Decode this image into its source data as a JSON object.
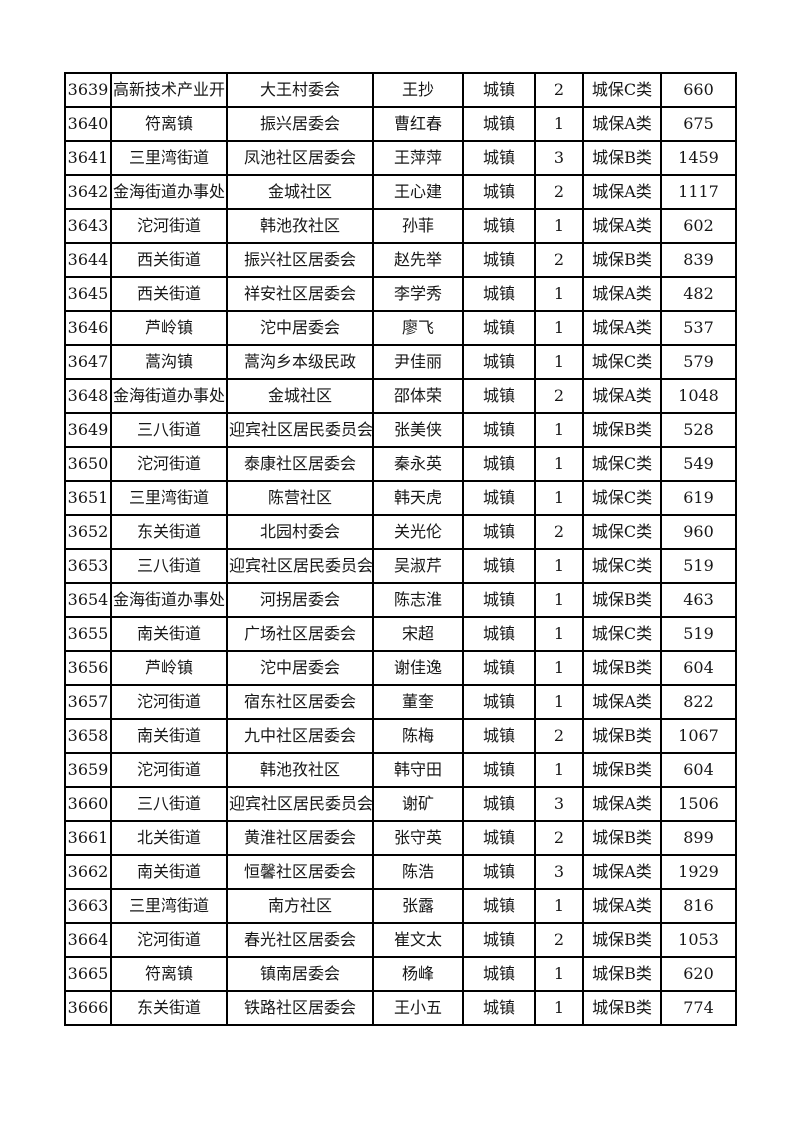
{
  "page": {
    "background_color": "#ffffff",
    "border_color": "#000000",
    "text_color": "#161616"
  },
  "table": {
    "column_keys": [
      "serial_number",
      "township",
      "committee",
      "person_name",
      "residence_type",
      "household_count",
      "insurance_category",
      "amount"
    ],
    "rows": [
      [
        "3639",
        "高新技术产业开",
        "大王村委会",
        "王抄",
        "城镇",
        "2",
        "城保C类",
        "660"
      ],
      [
        "3640",
        "符离镇",
        "振兴居委会",
        "曹红春",
        "城镇",
        "1",
        "城保A类",
        "675"
      ],
      [
        "3641",
        "三里湾街道",
        "凤池社区居委会",
        "王萍萍",
        "城镇",
        "3",
        "城保B类",
        "1459"
      ],
      [
        "3642",
        "金海街道办事处",
        "金城社区",
        "王心建",
        "城镇",
        "2",
        "城保A类",
        "1117"
      ],
      [
        "3643",
        "沱河街道",
        "韩池孜社区",
        "孙菲",
        "城镇",
        "1",
        "城保A类",
        "602"
      ],
      [
        "3644",
        "西关街道",
        "振兴社区居委会",
        "赵先举",
        "城镇",
        "2",
        "城保B类",
        "839"
      ],
      [
        "3645",
        "西关街道",
        "祥安社区居委会",
        "李学秀",
        "城镇",
        "1",
        "城保A类",
        "482"
      ],
      [
        "3646",
        "芦岭镇",
        "沱中居委会",
        "廖飞",
        "城镇",
        "1",
        "城保A类",
        "537"
      ],
      [
        "3647",
        "蒿沟镇",
        "蒿沟乡本级民政",
        "尹佳丽",
        "城镇",
        "1",
        "城保C类",
        "579"
      ],
      [
        "3648",
        "金海街道办事处",
        "金城社区",
        "邵体荣",
        "城镇",
        "2",
        "城保A类",
        "1048"
      ],
      [
        "3649",
        "三八街道",
        "迎宾社区居民委员会",
        "张美侠",
        "城镇",
        "1",
        "城保B类",
        "528"
      ],
      [
        "3650",
        "沱河街道",
        "泰康社区居委会",
        "秦永英",
        "城镇",
        "1",
        "城保C类",
        "549"
      ],
      [
        "3651",
        "三里湾街道",
        "陈营社区",
        "韩天虎",
        "城镇",
        "1",
        "城保C类",
        "619"
      ],
      [
        "3652",
        "东关街道",
        "北园村委会",
        "关光伦",
        "城镇",
        "2",
        "城保C类",
        "960"
      ],
      [
        "3653",
        "三八街道",
        "迎宾社区居民委员会",
        "吴淑芹",
        "城镇",
        "1",
        "城保C类",
        "519"
      ],
      [
        "3654",
        "金海街道办事处",
        "河拐居委会",
        "陈志淮",
        "城镇",
        "1",
        "城保B类",
        "463"
      ],
      [
        "3655",
        "南关街道",
        "广场社区居委会",
        "宋超",
        "城镇",
        "1",
        "城保C类",
        "519"
      ],
      [
        "3656",
        "芦岭镇",
        "沱中居委会",
        "谢佳逸",
        "城镇",
        "1",
        "城保B类",
        "604"
      ],
      [
        "3657",
        "沱河街道",
        "宿东社区居委会",
        "董奎",
        "城镇",
        "1",
        "城保A类",
        "822"
      ],
      [
        "3658",
        "南关街道",
        "九中社区居委会",
        "陈梅",
        "城镇",
        "2",
        "城保B类",
        "1067"
      ],
      [
        "3659",
        "沱河街道",
        "韩池孜社区",
        "韩守田",
        "城镇",
        "1",
        "城保B类",
        "604"
      ],
      [
        "3660",
        "三八街道",
        "迎宾社区居民委员会",
        "谢矿",
        "城镇",
        "3",
        "城保A类",
        "1506"
      ],
      [
        "3661",
        "北关街道",
        "黄淮社区居委会",
        "张守英",
        "城镇",
        "2",
        "城保B类",
        "899"
      ],
      [
        "3662",
        "南关街道",
        "恒馨社区居委会",
        "陈浩",
        "城镇",
        "3",
        "城保A类",
        "1929"
      ],
      [
        "3663",
        "三里湾街道",
        "南方社区",
        "张露",
        "城镇",
        "1",
        "城保A类",
        "816"
      ],
      [
        "3664",
        "沱河街道",
        "春光社区居委会",
        "崔文太",
        "城镇",
        "2",
        "城保B类",
        "1053"
      ],
      [
        "3665",
        "符离镇",
        "镇南居委会",
        "杨峰",
        "城镇",
        "1",
        "城保B类",
        "620"
      ],
      [
        "3666",
        "东关街道",
        "铁路社区居委会",
        "王小五",
        "城镇",
        "1",
        "城保B类",
        "774"
      ]
    ]
  }
}
